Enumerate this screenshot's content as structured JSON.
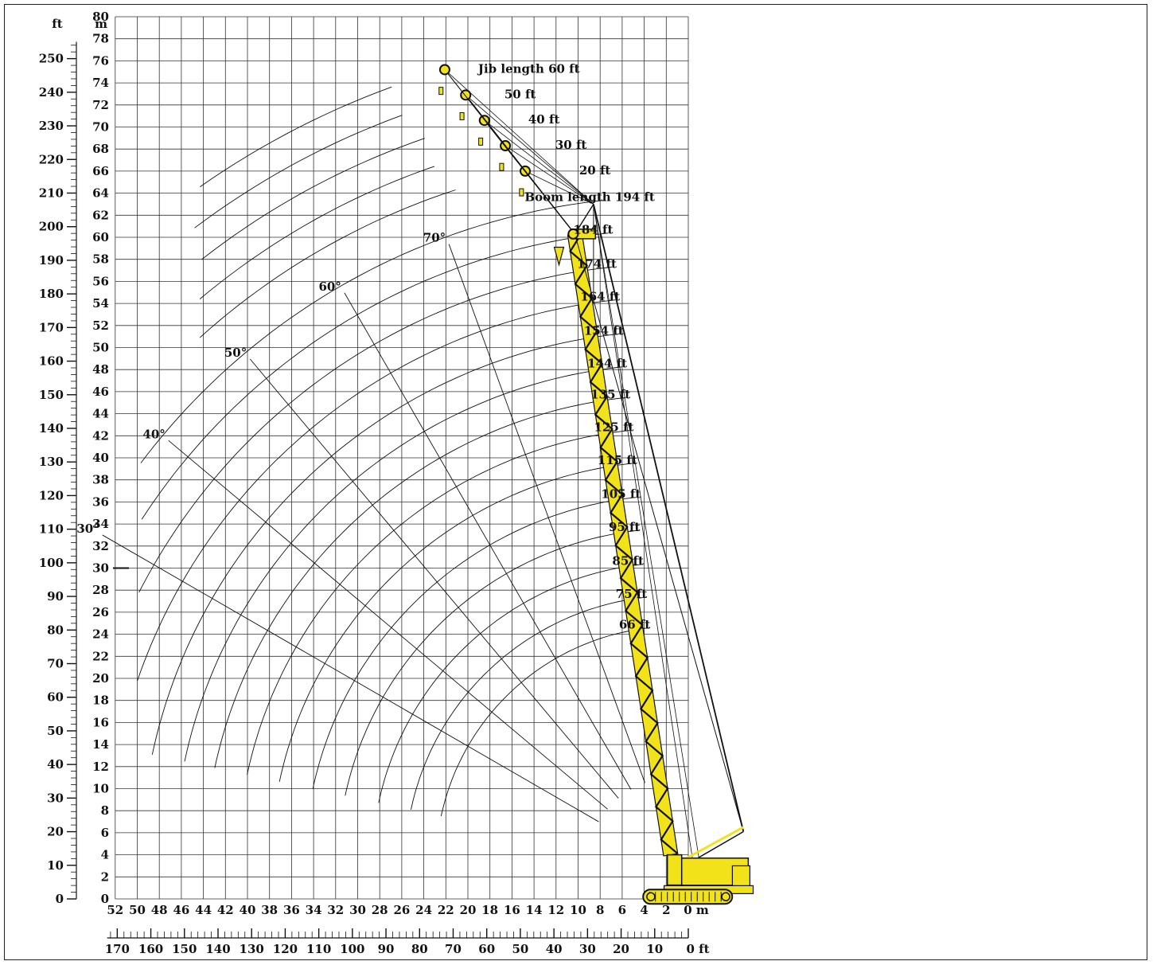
{
  "chart_data": {
    "type": "range-diagram",
    "axes": {
      "x_m": {
        "unit": "m",
        "min": 0,
        "max": 52,
        "step": 2
      },
      "y_m": {
        "unit": "m",
        "min": 0,
        "max": 80,
        "step": 2
      },
      "y_ft": {
        "unit": "ft",
        "min": 0,
        "max": 250,
        "label_step": 10
      },
      "x_ft": {
        "unit": "ft",
        "min": 0,
        "max": 170,
        "label_step": 10
      },
      "grid": true
    },
    "x_tick_labels": [
      "52",
      "50",
      "48",
      "46",
      "44",
      "42",
      "40",
      "38",
      "36",
      "34",
      "32",
      "30",
      "28",
      "26",
      "24",
      "22",
      "20",
      "18",
      "16",
      "14",
      "12",
      "10",
      "8",
      "6",
      "4",
      "2",
      "0 m"
    ],
    "x_ft_tick_labels": [
      "170",
      "160",
      "150",
      "140",
      "130",
      "120",
      "110",
      "100",
      "90",
      "80",
      "70",
      "60",
      "50",
      "40",
      "30",
      "20",
      "10",
      "0 ft"
    ],
    "y_m_axis_title": "m",
    "y_ft_axis_title": "ft",
    "boom_lengths": [
      {
        "label": "66 ft",
        "length_m": 20.1
      },
      {
        "label": "75 ft",
        "length_m": 22.9
      },
      {
        "label": "85 ft",
        "length_m": 25.9
      },
      {
        "label": "95 ft",
        "length_m": 29.0
      },
      {
        "label": "105 ft",
        "length_m": 32.0
      },
      {
        "label": "115 ft",
        "length_m": 35.1
      },
      {
        "label": "125 ft",
        "length_m": 38.1
      },
      {
        "label": "135 ft",
        "length_m": 41.1
      },
      {
        "label": "144 ft",
        "length_m": 43.9
      },
      {
        "label": "154 ft",
        "length_m": 46.9
      },
      {
        "label": "164 ft",
        "length_m": 50.0
      },
      {
        "label": "174 ft",
        "length_m": 53.0
      },
      {
        "label": "184 ft",
        "length_m": 56.1
      },
      {
        "label": "Boom length 194 ft",
        "length_m": 59.1
      }
    ],
    "jib_lengths": [
      {
        "label": "20 ft",
        "tip": [
          14.8,
          66
        ]
      },
      {
        "label": "30 ft",
        "tip": [
          16.6,
          68.3
        ]
      },
      {
        "label": "40 ft",
        "tip": [
          18.5,
          70.6
        ]
      },
      {
        "label": "50 ft",
        "tip": [
          20.2,
          72.9
        ]
      },
      {
        "label": "Jib length 60 ft",
        "tip": [
          22.1,
          75.2
        ]
      }
    ],
    "boom_angles": [
      {
        "label": "30°",
        "deg": 30
      },
      {
        "label": "40°",
        "deg": 40
      },
      {
        "label": "50°",
        "deg": 50
      },
      {
        "label": "60°",
        "deg": 60
      },
      {
        "label": "70°",
        "deg": 70
      }
    ],
    "colors": {
      "crane": "#f2e21a",
      "line": "#111111",
      "grid": "#333333"
    }
  }
}
